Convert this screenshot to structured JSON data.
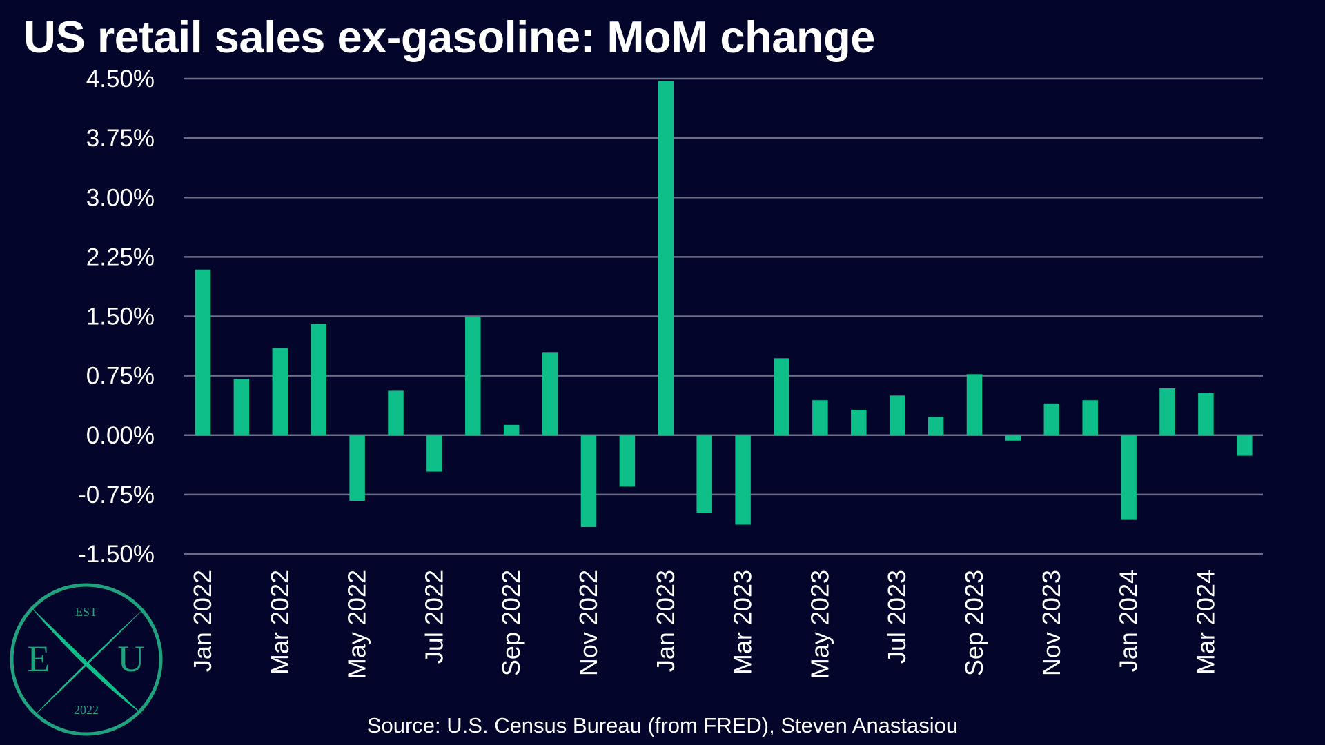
{
  "chart_data": {
    "type": "bar",
    "title": "US retail sales ex-gasoline: MoM change",
    "xlabel": "",
    "ylabel": "",
    "categories": [
      "Jan 2022",
      "Feb 2022",
      "Mar 2022",
      "Apr 2022",
      "May 2022",
      "Jun 2022",
      "Jul 2022",
      "Aug 2022",
      "Sep 2022",
      "Oct 2022",
      "Nov 2022",
      "Dec 2022",
      "Jan 2023",
      "Feb 2023",
      "Mar 2023",
      "Apr 2023",
      "May 2023",
      "Jun 2023",
      "Jul 2023",
      "Aug 2023",
      "Sep 2023",
      "Oct 2023",
      "Nov 2023",
      "Dec 2023",
      "Jan 2024",
      "Feb 2024",
      "Mar 2024",
      "Apr 2024"
    ],
    "values": [
      2.09,
      0.71,
      1.1,
      1.4,
      -0.83,
      0.56,
      -0.46,
      1.49,
      0.13,
      1.04,
      -1.16,
      -0.65,
      4.47,
      -0.98,
      -1.13,
      0.97,
      0.44,
      0.32,
      0.5,
      0.23,
      0.77,
      -0.07,
      0.4,
      0.44,
      -1.07,
      0.59,
      0.53,
      -0.26
    ],
    "x_tick_labels": [
      "Jan 2022",
      "Mar 2022",
      "May 2022",
      "Jul 2022",
      "Sep 2022",
      "Nov 2022",
      "Jan 2023",
      "Mar 2023",
      "May 2023",
      "Jul 2023",
      "Sep 2023",
      "Nov 2023",
      "Jan 2024",
      "Mar 2024"
    ],
    "y_tick_labels": [
      "4.50%",
      "3.75%",
      "3.00%",
      "2.25%",
      "1.50%",
      "0.75%",
      "0.00%",
      "-0.75%",
      "-1.50%"
    ],
    "y_ticks": [
      4.5,
      3.75,
      3.0,
      2.25,
      1.5,
      0.75,
      0.0,
      -0.75,
      -1.5
    ],
    "ylim": [
      -1.5,
      4.5
    ],
    "grid": true,
    "legend": "none",
    "bar_color": "#0fbf8a",
    "grid_color": "#6c6e86",
    "background": "#03052a"
  },
  "source": "Source: U.S. Census Bureau (from FRED), Steven Anastasiou",
  "logo": {
    "top": "EST",
    "left_letter": "E",
    "center_letter": "X",
    "right_letter": "U",
    "bottom": "2022",
    "color": "#1fa27d"
  }
}
